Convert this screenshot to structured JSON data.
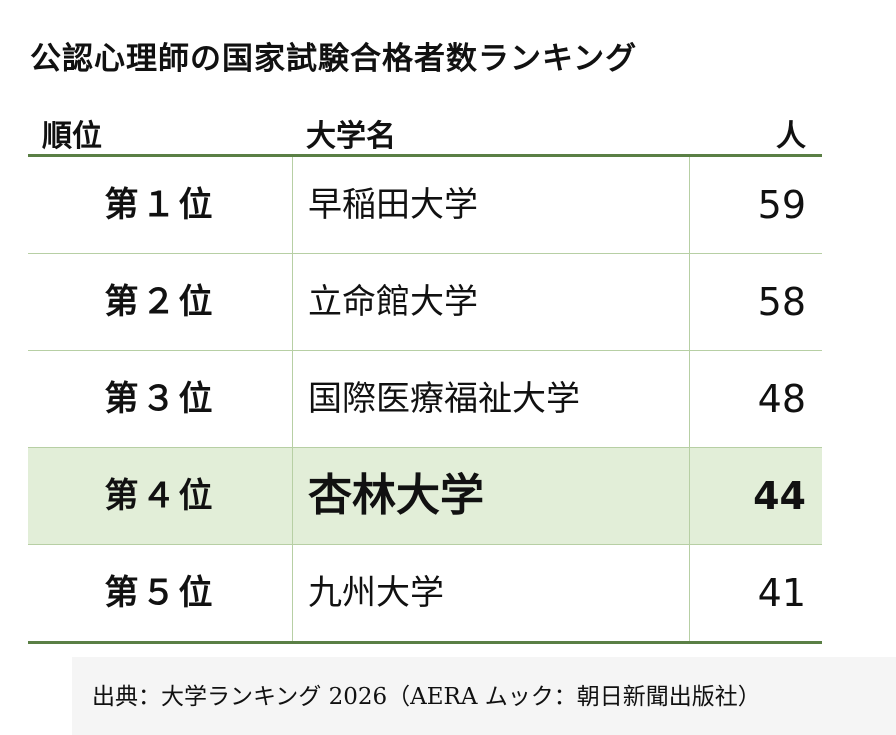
{
  "title": "公認心理師の国家試験合格者数ランキング",
  "headers": {
    "rank": "順位",
    "university": "大学名",
    "count": "人"
  },
  "chart_data": {
    "type": "table",
    "title": "公認心理師の国家試験合格者数ランキング",
    "columns": [
      "順位",
      "大学名",
      "人"
    ],
    "rows": [
      {
        "rank": "第１位",
        "university": "早稲田大学",
        "count": "59"
      },
      {
        "rank": "第２位",
        "university": "立命館大学",
        "count": "58"
      },
      {
        "rank": "第３位",
        "university": "国際医療福祉大学",
        "count": "48"
      },
      {
        "rank": "第４位",
        "university": "杏林大学",
        "count": "44",
        "highlighted": true
      },
      {
        "rank": "第５位",
        "university": "九州大学",
        "count": "41"
      }
    ],
    "highlight_color": "#e2eed8",
    "rule_color": "#5a7f45"
  },
  "source": "出典：大学ランキング 2026（AERA ムック：朝日新聞出版社）"
}
